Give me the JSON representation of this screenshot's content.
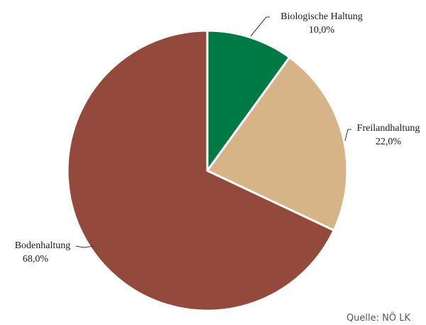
{
  "chart_data": {
    "type": "pie",
    "title": "",
    "slices": [
      {
        "label": "Biologische Haltung",
        "value": 10.0,
        "value_label": "10,0%",
        "color": "#007a45"
      },
      {
        "label": "Freilandhaltung",
        "value": 22.0,
        "value_label": "22,0%",
        "color": "#d6b487"
      },
      {
        "label": "Bodenhaltung",
        "value": 68.0,
        "value_label": "68,0%",
        "color": "#934a3c"
      }
    ],
    "start": "12 o'clock",
    "direction": "clockwise",
    "slice_border_color": "#ffffff"
  },
  "source": "Quelle: NÖ LK"
}
